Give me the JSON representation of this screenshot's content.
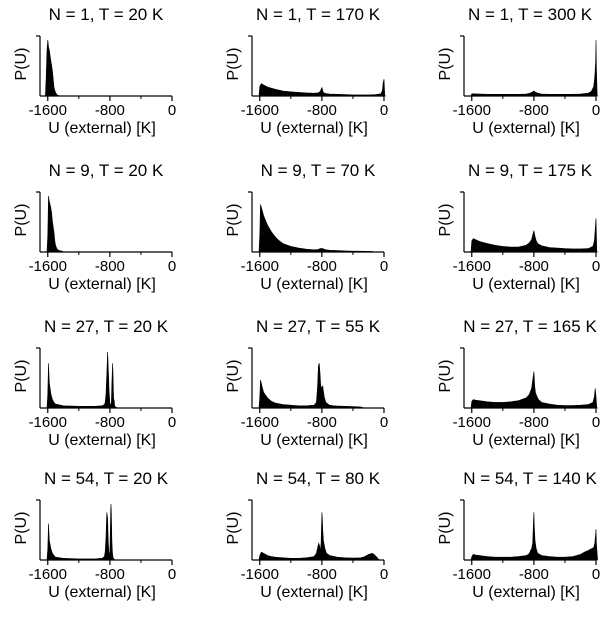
{
  "colors": {
    "fill": "#000000",
    "axis": "#000000",
    "background": "#ffffff"
  },
  "chart_data": {
    "type": "area",
    "layout": "4x3 grid",
    "xlabel": "U (external) [K]",
    "ylabel": "P(U)",
    "xticks": [
      -1600,
      -800,
      0
    ],
    "xtick_labels": [
      "-1600",
      "-800",
      "0"
    ],
    "xlim": [
      -1700,
      0
    ],
    "grid": false,
    "panels": [
      {
        "title": "N = 1, T = 20 K",
        "x": [
          -1700,
          -1630,
          -1620,
          -1610,
          -1600,
          -1590,
          -1580,
          -1570,
          -1560,
          -1550,
          -1540,
          -1530,
          -1520,
          -1500,
          -1480,
          -1450,
          -1200
        ],
        "values": [
          0,
          0,
          0.35,
          0.82,
          1.0,
          0.88,
          0.82,
          0.72,
          0.62,
          0.55,
          0.45,
          0.3,
          0.15,
          0.06,
          0.02,
          0.0,
          0
        ]
      },
      {
        "title": "N = 1, T = 170 K",
        "x": [
          -1700,
          -1610,
          -1600,
          -1580,
          -1540,
          -1500,
          -1400,
          -1300,
          -1200,
          -1100,
          -1000,
          -900,
          -850,
          -820,
          -810,
          -800,
          -790,
          -780,
          -750,
          -700,
          -600,
          -500,
          -400,
          -300,
          -200,
          -100,
          -40,
          -20,
          -10,
          0,
          10,
          30
        ],
        "values": [
          0,
          0,
          0.17,
          0.22,
          0.19,
          0.16,
          0.12,
          0.09,
          0.075,
          0.065,
          0.055,
          0.05,
          0.055,
          0.08,
          0.12,
          0.15,
          0.1,
          0.06,
          0.045,
          0.035,
          0.03,
          0.025,
          0.02,
          0.02,
          0.02,
          0.025,
          0.04,
          0.1,
          0.24,
          0.3,
          0,
          0
        ]
      },
      {
        "title": "N = 1, T = 300 K",
        "x": [
          -1700,
          -1610,
          -1600,
          -1500,
          -1400,
          -1300,
          -1200,
          -1100,
          -1000,
          -900,
          -850,
          -820,
          -800,
          -780,
          -750,
          -700,
          -600,
          -500,
          -400,
          -300,
          -200,
          -100,
          -60,
          -30,
          -15,
          -5,
          0,
          5,
          15,
          30
        ],
        "values": [
          0,
          0,
          0.04,
          0.035,
          0.03,
          0.03,
          0.03,
          0.03,
          0.03,
          0.035,
          0.05,
          0.07,
          0.09,
          0.07,
          0.05,
          0.035,
          0.03,
          0.03,
          0.03,
          0.03,
          0.035,
          0.05,
          0.08,
          0.17,
          0.35,
          0.6,
          1.0,
          0.5,
          0,
          0
        ]
      },
      {
        "title": "N = 9, T = 20 K",
        "x": [
          -1700,
          -1610,
          -1600,
          -1590,
          -1580,
          -1570,
          -1560,
          -1550,
          -1540,
          -1530,
          -1520,
          -1510,
          -1500,
          -1480,
          -1460,
          -1440,
          -1420,
          -1400
        ],
        "values": [
          0,
          0,
          0.3,
          1.0,
          0.9,
          0.85,
          0.78,
          0.7,
          0.55,
          0.45,
          0.35,
          0.2,
          0.12,
          0.05,
          0.03,
          0.02,
          0.02,
          0
        ]
      },
      {
        "title": "N = 9, T = 70 K",
        "x": [
          -1700,
          -1610,
          -1600,
          -1590,
          -1570,
          -1550,
          -1500,
          -1450,
          -1400,
          -1350,
          -1300,
          -1200,
          -1100,
          -1000,
          -900,
          -850,
          -820,
          -800,
          -780,
          -750,
          -700,
          -600,
          -500,
          -400,
          -300,
          -200,
          -150,
          -140
        ],
        "values": [
          0,
          0,
          0.3,
          0.85,
          0.75,
          0.65,
          0.48,
          0.36,
          0.27,
          0.2,
          0.15,
          0.1,
          0.07,
          0.05,
          0.04,
          0.045,
          0.06,
          0.065,
          0.055,
          0.04,
          0.03,
          0.025,
          0.02,
          0.015,
          0.015,
          0.01,
          0.01,
          0
        ]
      },
      {
        "title": "N = 9, T = 175 K",
        "x": [
          -1700,
          -1610,
          -1600,
          -1580,
          -1550,
          -1500,
          -1400,
          -1300,
          -1200,
          -1100,
          -1000,
          -900,
          -860,
          -830,
          -815,
          -800,
          -785,
          -770,
          -750,
          -700,
          -600,
          -500,
          -400,
          -300,
          -200,
          -100,
          -40,
          -20,
          -10,
          0,
          10,
          30
        ],
        "values": [
          0,
          0,
          0.2,
          0.24,
          0.22,
          0.19,
          0.15,
          0.12,
          0.1,
          0.09,
          0.09,
          0.12,
          0.16,
          0.22,
          0.3,
          0.38,
          0.28,
          0.2,
          0.15,
          0.11,
          0.08,
          0.07,
          0.06,
          0.055,
          0.055,
          0.06,
          0.1,
          0.2,
          0.4,
          0.6,
          0,
          0
        ]
      },
      {
        "title": "N = 27, T = 20 K",
        "x": [
          -1700,
          -1610,
          -1600,
          -1590,
          -1580,
          -1560,
          -1540,
          -1520,
          -1500,
          -1400,
          -1200,
          -1000,
          -900,
          -870,
          -860,
          -850,
          -840,
          -830,
          -820,
          -810,
          -800,
          -790,
          -780,
          -775,
          -765,
          -760,
          -755,
          -750,
          -745,
          -740,
          -730,
          -700
        ],
        "values": [
          0,
          0,
          0.25,
          0.8,
          0.45,
          0.25,
          0.15,
          0.1,
          0.07,
          0.04,
          0.03,
          0.03,
          0.04,
          0.06,
          0.1,
          0.25,
          0.6,
          1.0,
          0.7,
          0.3,
          0.08,
          0.05,
          0.1,
          0.4,
          0.8,
          0.6,
          0.3,
          0.05,
          0.15,
          0.05,
          0.02,
          0
        ]
      },
      {
        "title": "N = 27, T = 55 K",
        "x": [
          -1700,
          -1610,
          -1600,
          -1590,
          -1570,
          -1550,
          -1500,
          -1450,
          -1400,
          -1300,
          -1200,
          -1100,
          -1000,
          -900,
          -870,
          -855,
          -845,
          -835,
          -825,
          -815,
          -800,
          -790,
          -780,
          -770,
          -760,
          -750,
          -700,
          -650,
          -600,
          -500,
          -400,
          -300,
          -250
        ],
        "values": [
          0,
          0,
          0.2,
          0.5,
          0.38,
          0.28,
          0.18,
          0.12,
          0.09,
          0.06,
          0.05,
          0.04,
          0.04,
          0.05,
          0.1,
          0.4,
          0.75,
          0.8,
          0.65,
          0.4,
          0.35,
          0.4,
          0.3,
          0.2,
          0.15,
          0.1,
          0.05,
          0.04,
          0.035,
          0.03,
          0.025,
          0.02,
          0
        ]
      },
      {
        "title": "N = 27, T = 165 K",
        "x": [
          -1700,
          -1610,
          -1600,
          -1580,
          -1550,
          -1500,
          -1400,
          -1300,
          -1200,
          -1100,
          -1000,
          -900,
          -860,
          -830,
          -815,
          -800,
          -790,
          -780,
          -760,
          -740,
          -700,
          -600,
          -500,
          -400,
          -300,
          -200,
          -100,
          -40,
          -20,
          -10,
          0,
          10,
          30
        ],
        "values": [
          0,
          0,
          0.12,
          0.15,
          0.14,
          0.13,
          0.11,
          0.1,
          0.1,
          0.11,
          0.13,
          0.18,
          0.24,
          0.35,
          0.5,
          0.65,
          0.4,
          0.28,
          0.2,
          0.15,
          0.1,
          0.07,
          0.05,
          0.045,
          0.045,
          0.05,
          0.06,
          0.1,
          0.2,
          0.35,
          0.2,
          0,
          0
        ]
      },
      {
        "title": "N = 54, T = 20 K",
        "x": [
          -1700,
          -1610,
          -1600,
          -1590,
          -1580,
          -1560,
          -1540,
          -1520,
          -1500,
          -1400,
          -1200,
          -1000,
          -900,
          -870,
          -860,
          -850,
          -840,
          -830,
          -820,
          -810,
          -800,
          -795,
          -790,
          -785,
          -780,
          -775,
          -770,
          -765,
          -760,
          -750,
          -740,
          -730
        ],
        "values": [
          0,
          0,
          0.2,
          0.65,
          0.35,
          0.2,
          0.12,
          0.08,
          0.05,
          0.03,
          0.02,
          0.02,
          0.03,
          0.06,
          0.15,
          0.4,
          0.85,
          0.75,
          0.3,
          0.08,
          0.15,
          0.5,
          0.9,
          1.0,
          0.8,
          0.4,
          0.2,
          0.1,
          0.05,
          0.02,
          0.01,
          0
        ]
      },
      {
        "title": "N = 54, T = 80 K",
        "x": [
          -1700,
          -1610,
          -1600,
          -1580,
          -1550,
          -1500,
          -1450,
          -1400,
          -1300,
          -1200,
          -1100,
          -1000,
          -900,
          -870,
          -850,
          -840,
          -830,
          -820,
          -810,
          -805,
          -800,
          -795,
          -790,
          -780,
          -760,
          -740,
          -700,
          -600,
          -500,
          -400,
          -300,
          -250,
          -200,
          -150,
          -120,
          -100,
          -80,
          -60
        ],
        "values": [
          0,
          0,
          0.08,
          0.14,
          0.12,
          0.08,
          0.06,
          0.05,
          0.04,
          0.03,
          0.03,
          0.04,
          0.06,
          0.12,
          0.25,
          0.3,
          0.25,
          0.15,
          0.3,
          0.6,
          0.85,
          0.75,
          0.55,
          0.35,
          0.2,
          0.12,
          0.08,
          0.05,
          0.04,
          0.035,
          0.04,
          0.06,
          0.1,
          0.12,
          0.09,
          0.06,
          0.03,
          0
        ]
      },
      {
        "title": "N = 54, T = 140 K",
        "x": [
          -1700,
          -1610,
          -1600,
          -1580,
          -1550,
          -1500,
          -1400,
          -1300,
          -1200,
          -1100,
          -1000,
          -900,
          -870,
          -850,
          -840,
          -830,
          -815,
          -805,
          -800,
          -795,
          -785,
          -770,
          -750,
          -700,
          -600,
          -500,
          -400,
          -300,
          -250,
          -200,
          -150,
          -100,
          -60,
          -30,
          -15,
          -5,
          0,
          5,
          20
        ],
        "values": [
          0,
          0,
          0.06,
          0.1,
          0.09,
          0.08,
          0.06,
          0.05,
          0.05,
          0.05,
          0.06,
          0.08,
          0.1,
          0.14,
          0.18,
          0.2,
          0.3,
          0.7,
          0.85,
          0.6,
          0.35,
          0.2,
          0.12,
          0.08,
          0.06,
          0.05,
          0.05,
          0.06,
          0.08,
          0.1,
          0.14,
          0.17,
          0.2,
          0.22,
          0.3,
          0.45,
          0.55,
          0.3,
          0
        ]
      }
    ]
  }
}
